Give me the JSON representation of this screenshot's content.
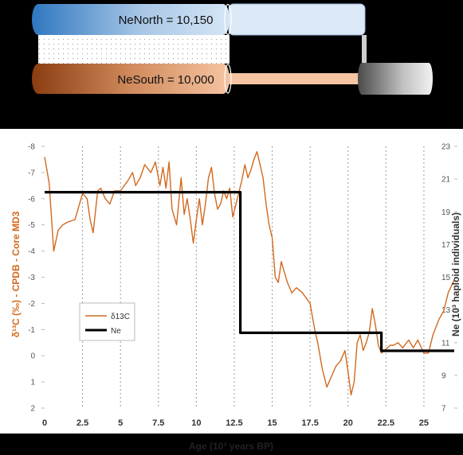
{
  "populations": {
    "north_label": "NeNorth = 10,150",
    "south_label": "NeSouth = 10,000"
  },
  "colors": {
    "delta_series": "#d2691e",
    "ne_series": "#000000",
    "axis_title": "#d2691e",
    "north_fill": "#2f77c0",
    "south_fill": "#8b3d10"
  },
  "chart_data": {
    "type": "line",
    "xlabel": "Age (10³ years BP)",
    "ylabel_left": "δ¹³C (‰) - CPDB - Core MD3",
    "ylabel_right": "Ne (10³ haploid individuals)",
    "x_ticks": [
      "0",
      "2.5",
      "5",
      "7.5",
      "10",
      "12.5",
      "15",
      "17.5",
      "20",
      "22.5",
      "25"
    ],
    "y_left_ticks": [
      "-8",
      "-7",
      "-6",
      "-5",
      "-4",
      "-3",
      "-2",
      "-1",
      "0",
      "1",
      "2"
    ],
    "y_right_ticks": [
      "23",
      "21",
      "19",
      "17",
      "15",
      "13",
      "11",
      "9",
      "7"
    ],
    "xlim": [
      0,
      27
    ],
    "ylim_left": [
      -8,
      2
    ],
    "ylim_left_inverted": true,
    "ylim_right": [
      7,
      23
    ],
    "grid": "vertical dotted at x ticks",
    "legend_position": "left-middle",
    "series": [
      {
        "name": "δ13C",
        "axis": "left",
        "x": [
          0,
          0.3,
          0.6,
          0.9,
          1.2,
          1.5,
          2,
          2.5,
          2.8,
          3,
          3.2,
          3.5,
          3.7,
          4,
          4.3,
          4.6,
          5,
          5.5,
          5.8,
          6,
          6.3,
          6.6,
          7,
          7.3,
          7.6,
          7.8,
          8,
          8.2,
          8.4,
          8.7,
          9,
          9.2,
          9.4,
          9.6,
          9.8,
          10,
          10.2,
          10.4,
          10.6,
          10.8,
          11,
          11.2,
          11.4,
          11.6,
          11.8,
          12,
          12.2,
          12.4,
          12.7,
          13,
          13.2,
          13.4,
          13.6,
          13.8,
          14,
          14.2,
          14.4,
          14.6,
          14.8,
          15,
          15.2,
          15.4,
          15.6,
          15.8,
          16,
          16.3,
          16.6,
          17,
          17.5,
          17.8,
          18,
          18.3,
          18.6,
          18.9,
          19.2,
          19.5,
          19.8,
          20,
          20.2,
          20.4,
          20.6,
          20.8,
          21,
          21.2,
          21.4,
          21.6,
          21.8,
          22,
          22.2,
          22.4,
          22.6,
          22.8,
          23,
          23.3,
          23.6,
          24,
          24.3,
          24.6,
          25,
          25.3,
          25.6,
          26,
          26.3,
          26.6,
          27
        ],
        "values": [
          -7.6,
          -6.6,
          -4.0,
          -4.8,
          -5.0,
          -5.1,
          -5.2,
          -6.2,
          -6.0,
          -5.2,
          -4.7,
          -6.3,
          -6.4,
          -6.0,
          -5.8,
          -6.3,
          -6.3,
          -6.7,
          -7.0,
          -6.5,
          -6.8,
          -7.3,
          -7.0,
          -7.4,
          -6.5,
          -7.2,
          -6.4,
          -7.4,
          -5.6,
          -5.0,
          -6.8,
          -5.4,
          -6.0,
          -5.2,
          -4.3,
          -5.2,
          -6.0,
          -5.0,
          -5.8,
          -6.8,
          -7.2,
          -6.2,
          -5.6,
          -5.8,
          -6.3,
          -6.0,
          -6.4,
          -5.3,
          -6.0,
          -6.7,
          -7.3,
          -6.8,
          -7.1,
          -7.5,
          -7.8,
          -7.3,
          -6.8,
          -5.8,
          -5.0,
          -4.5,
          -3.0,
          -2.8,
          -3.6,
          -3.2,
          -2.8,
          -2.4,
          -2.6,
          -2.4,
          -2.0,
          -1.0,
          -0.5,
          0.5,
          1.2,
          0.8,
          0.4,
          0.2,
          -0.2,
          0.6,
          1.5,
          1.0,
          -0.5,
          -0.8,
          -0.2,
          -0.5,
          -0.9,
          -1.8,
          -1.2,
          -0.4,
          -0.1,
          -0.2,
          -0.3,
          -0.4,
          -0.4,
          -0.5,
          -0.3,
          -0.6,
          -0.3,
          -0.6,
          -0.1,
          -0.1,
          -0.8,
          -1.4,
          -1.7,
          -2.4,
          -2.9
        ]
      },
      {
        "name": "Ne",
        "axis": "right",
        "step": true,
        "x": [
          0,
          12.9,
          12.9,
          22.2,
          22.2,
          27
        ],
        "values": [
          20.2,
          20.2,
          11.6,
          11.6,
          10.5,
          10.5
        ]
      }
    ]
  }
}
